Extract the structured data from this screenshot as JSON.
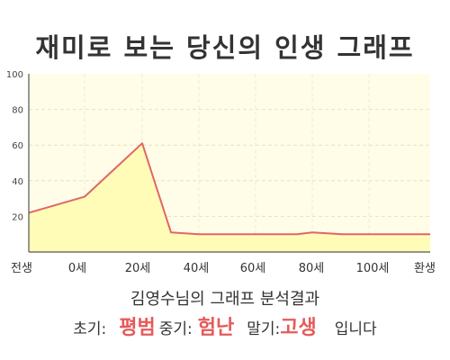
{
  "title": "재미로 보는 당신의 인생 그래프",
  "chart_data": {
    "type": "area",
    "x": [
      "전생",
      "0세",
      "20세",
      "40세",
      "60세",
      "80세",
      "100세",
      "환생"
    ],
    "xlabels_text": [
      "전생",
      "0세",
      "20세",
      "40세",
      "60세",
      "80세",
      "100세",
      "환생"
    ],
    "points_x": [
      "전생",
      "0세",
      "20세",
      "~25세",
      "30세",
      "40세",
      "60세",
      "70세",
      "80세",
      "90세",
      "100세",
      "환생"
    ],
    "points_y": [
      22,
      31,
      61,
      11,
      10,
      10,
      10,
      10,
      11,
      10,
      10,
      10
    ],
    "ylim": [
      0,
      100
    ],
    "yticks": [
      "20",
      "40",
      "60",
      "80",
      "100"
    ],
    "grid": true,
    "line_color": "#e06666",
    "fill_color": "#fffcb8",
    "plot_bg": "#fffde8"
  },
  "summary": {
    "text": "김영수님의 그래프 분석결과"
  },
  "result": {
    "early_label": "초기:",
    "early_value": "평범",
    "mid_label": "중기:",
    "mid_value": "험난",
    "late_label": "말기:",
    "late_value": "고생",
    "ending": "입니다"
  }
}
